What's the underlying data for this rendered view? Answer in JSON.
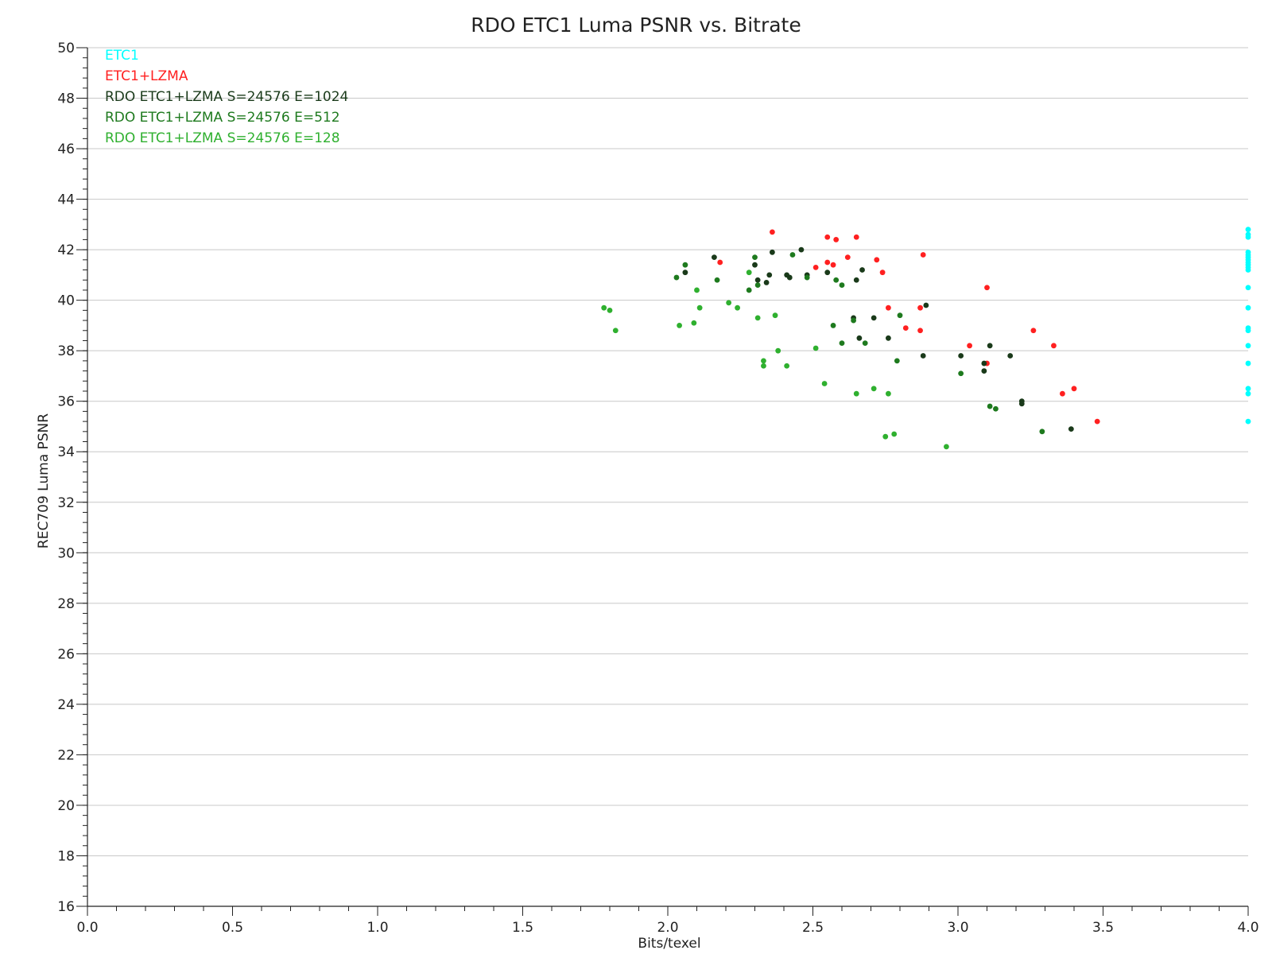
{
  "chart_data": {
    "type": "scatter",
    "title": "RDO ETC1 Luma PSNR vs. Bitrate",
    "xlabel": "Bits/texel",
    "ylabel": "REC709 Luma PSNR",
    "xlim": [
      0.0,
      4.0
    ],
    "ylim": [
      16,
      50
    ],
    "x_ticks": [
      "0.0",
      "0.5",
      "1.0",
      "1.5",
      "2.0",
      "2.5",
      "3.0",
      "3.5",
      "4.0"
    ],
    "y_ticks": [
      "16",
      "18",
      "20",
      "22",
      "24",
      "26",
      "28",
      "30",
      "32",
      "34",
      "36",
      "38",
      "40",
      "42",
      "44",
      "46",
      "48",
      "50"
    ],
    "grid": true,
    "legend_position": "top-left",
    "series": [
      {
        "name": "ETC1",
        "color": "#00ffff",
        "points": [
          [
            4.0,
            42.8
          ],
          [
            4.0,
            42.6
          ],
          [
            4.0,
            42.5
          ],
          [
            4.0,
            41.9
          ],
          [
            4.0,
            41.8
          ],
          [
            4.0,
            41.7
          ],
          [
            4.0,
            41.6
          ],
          [
            4.0,
            41.5
          ],
          [
            4.0,
            41.4
          ],
          [
            4.0,
            41.3
          ],
          [
            4.0,
            41.2
          ],
          [
            4.0,
            40.5
          ],
          [
            4.0,
            39.7
          ],
          [
            4.0,
            38.9
          ],
          [
            4.0,
            38.8
          ],
          [
            4.0,
            38.2
          ],
          [
            4.0,
            37.5
          ],
          [
            4.0,
            36.5
          ],
          [
            4.0,
            36.3
          ],
          [
            4.0,
            35.2
          ]
        ]
      },
      {
        "name": "ETC1+LZMA",
        "color": "#ff2020",
        "points": [
          [
            2.36,
            42.7
          ],
          [
            2.55,
            42.5
          ],
          [
            2.58,
            42.4
          ],
          [
            2.65,
            42.5
          ],
          [
            2.18,
            41.5
          ],
          [
            2.51,
            41.3
          ],
          [
            2.55,
            41.5
          ],
          [
            2.57,
            41.4
          ],
          [
            2.62,
            41.7
          ],
          [
            2.72,
            41.6
          ],
          [
            2.74,
            41.1
          ],
          [
            2.88,
            41.8
          ],
          [
            3.1,
            40.5
          ],
          [
            2.76,
            39.7
          ],
          [
            2.87,
            39.7
          ],
          [
            2.82,
            38.9
          ],
          [
            2.87,
            38.8
          ],
          [
            3.04,
            38.2
          ],
          [
            3.1,
            37.5
          ],
          [
            3.26,
            38.8
          ],
          [
            3.33,
            38.2
          ],
          [
            3.36,
            36.3
          ],
          [
            3.4,
            36.5
          ],
          [
            3.48,
            35.2
          ]
        ]
      },
      {
        "name": "RDO ETC1+LZMA S=24576 E=1024",
        "color": "#1a3a1a",
        "points": [
          [
            2.16,
            41.7
          ],
          [
            2.06,
            41.1
          ],
          [
            2.3,
            41.4
          ],
          [
            2.31,
            40.8
          ],
          [
            2.34,
            40.7
          ],
          [
            2.35,
            41.0
          ],
          [
            2.36,
            41.9
          ],
          [
            2.41,
            41.0
          ],
          [
            2.42,
            40.9
          ],
          [
            2.46,
            42.0
          ],
          [
            2.48,
            41.0
          ],
          [
            2.55,
            41.1
          ],
          [
            2.65,
            40.8
          ],
          [
            2.67,
            41.2
          ],
          [
            2.64,
            39.3
          ],
          [
            2.66,
            38.5
          ],
          [
            2.71,
            39.3
          ],
          [
            2.76,
            38.5
          ],
          [
            2.88,
            37.8
          ],
          [
            2.89,
            39.8
          ],
          [
            3.01,
            37.8
          ],
          [
            3.09,
            37.2
          ],
          [
            3.09,
            37.5
          ],
          [
            3.11,
            38.2
          ],
          [
            3.18,
            37.8
          ],
          [
            3.22,
            36.0
          ],
          [
            3.22,
            35.9
          ],
          [
            3.39,
            34.9
          ]
        ]
      },
      {
        "name": "RDO ETC1+LZMA S=24576 E=512",
        "color": "#1e7a1e",
        "points": [
          [
            2.03,
            40.9
          ],
          [
            2.06,
            41.4
          ],
          [
            2.17,
            40.8
          ],
          [
            2.28,
            40.4
          ],
          [
            2.3,
            41.7
          ],
          [
            2.31,
            40.6
          ],
          [
            2.43,
            41.8
          ],
          [
            2.48,
            40.9
          ],
          [
            2.57,
            39.0
          ],
          [
            2.58,
            40.8
          ],
          [
            2.6,
            40.6
          ],
          [
            2.6,
            38.3
          ],
          [
            2.64,
            39.2
          ],
          [
            2.68,
            38.3
          ],
          [
            2.8,
            39.4
          ],
          [
            2.79,
            37.6
          ],
          [
            3.01,
            37.1
          ],
          [
            3.11,
            35.8
          ],
          [
            3.13,
            35.7
          ],
          [
            3.29,
            34.8
          ]
        ]
      },
      {
        "name": "RDO ETC1+LZMA S=24576 E=128",
        "color": "#2fb02f",
        "points": [
          [
            1.78,
            39.7
          ],
          [
            1.8,
            39.6
          ],
          [
            1.82,
            38.8
          ],
          [
            2.04,
            39.0
          ],
          [
            2.09,
            39.1
          ],
          [
            2.1,
            40.4
          ],
          [
            2.11,
            39.7
          ],
          [
            2.21,
            39.9
          ],
          [
            2.24,
            39.7
          ],
          [
            2.28,
            41.1
          ],
          [
            2.31,
            39.3
          ],
          [
            2.33,
            37.6
          ],
          [
            2.33,
            37.4
          ],
          [
            2.37,
            39.4
          ],
          [
            2.38,
            38.0
          ],
          [
            2.41,
            37.4
          ],
          [
            2.51,
            38.1
          ],
          [
            2.54,
            36.7
          ],
          [
            2.65,
            36.3
          ],
          [
            2.71,
            36.5
          ],
          [
            2.75,
            34.6
          ],
          [
            2.76,
            36.3
          ],
          [
            2.78,
            34.7
          ],
          [
            2.96,
            34.2
          ]
        ]
      }
    ]
  }
}
